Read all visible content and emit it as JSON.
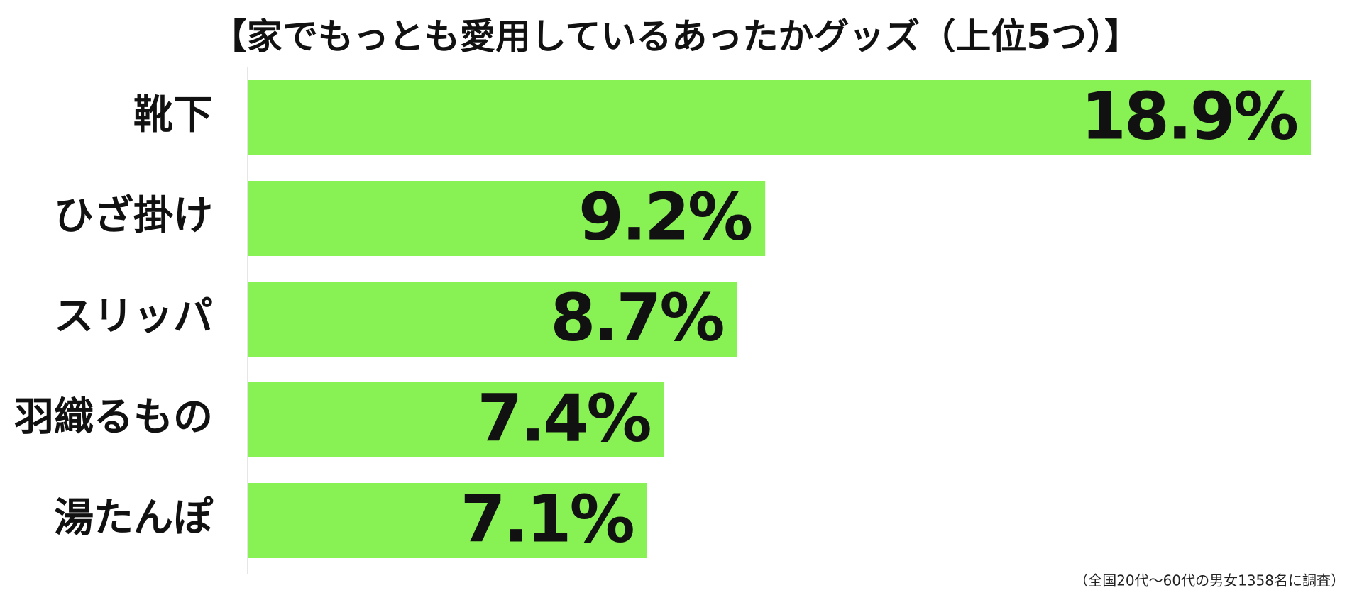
{
  "chart_data": {
    "type": "barh",
    "title": "【家でもっとも愛用しているあったかグッズ（上位5つ）】",
    "categories": [
      "靴下",
      "ひざ掛け",
      "スリッパ",
      "羽織るもの",
      "湯たんぽ"
    ],
    "values": [
      18.9,
      9.2,
      8.7,
      7.4,
      7.1
    ],
    "value_labels": [
      "18.9%",
      "9.2%",
      "8.7%",
      "7.4%",
      "7.1%"
    ],
    "color": "#88f154",
    "note": "（全国20代〜60代の男女1358名に調査）"
  }
}
